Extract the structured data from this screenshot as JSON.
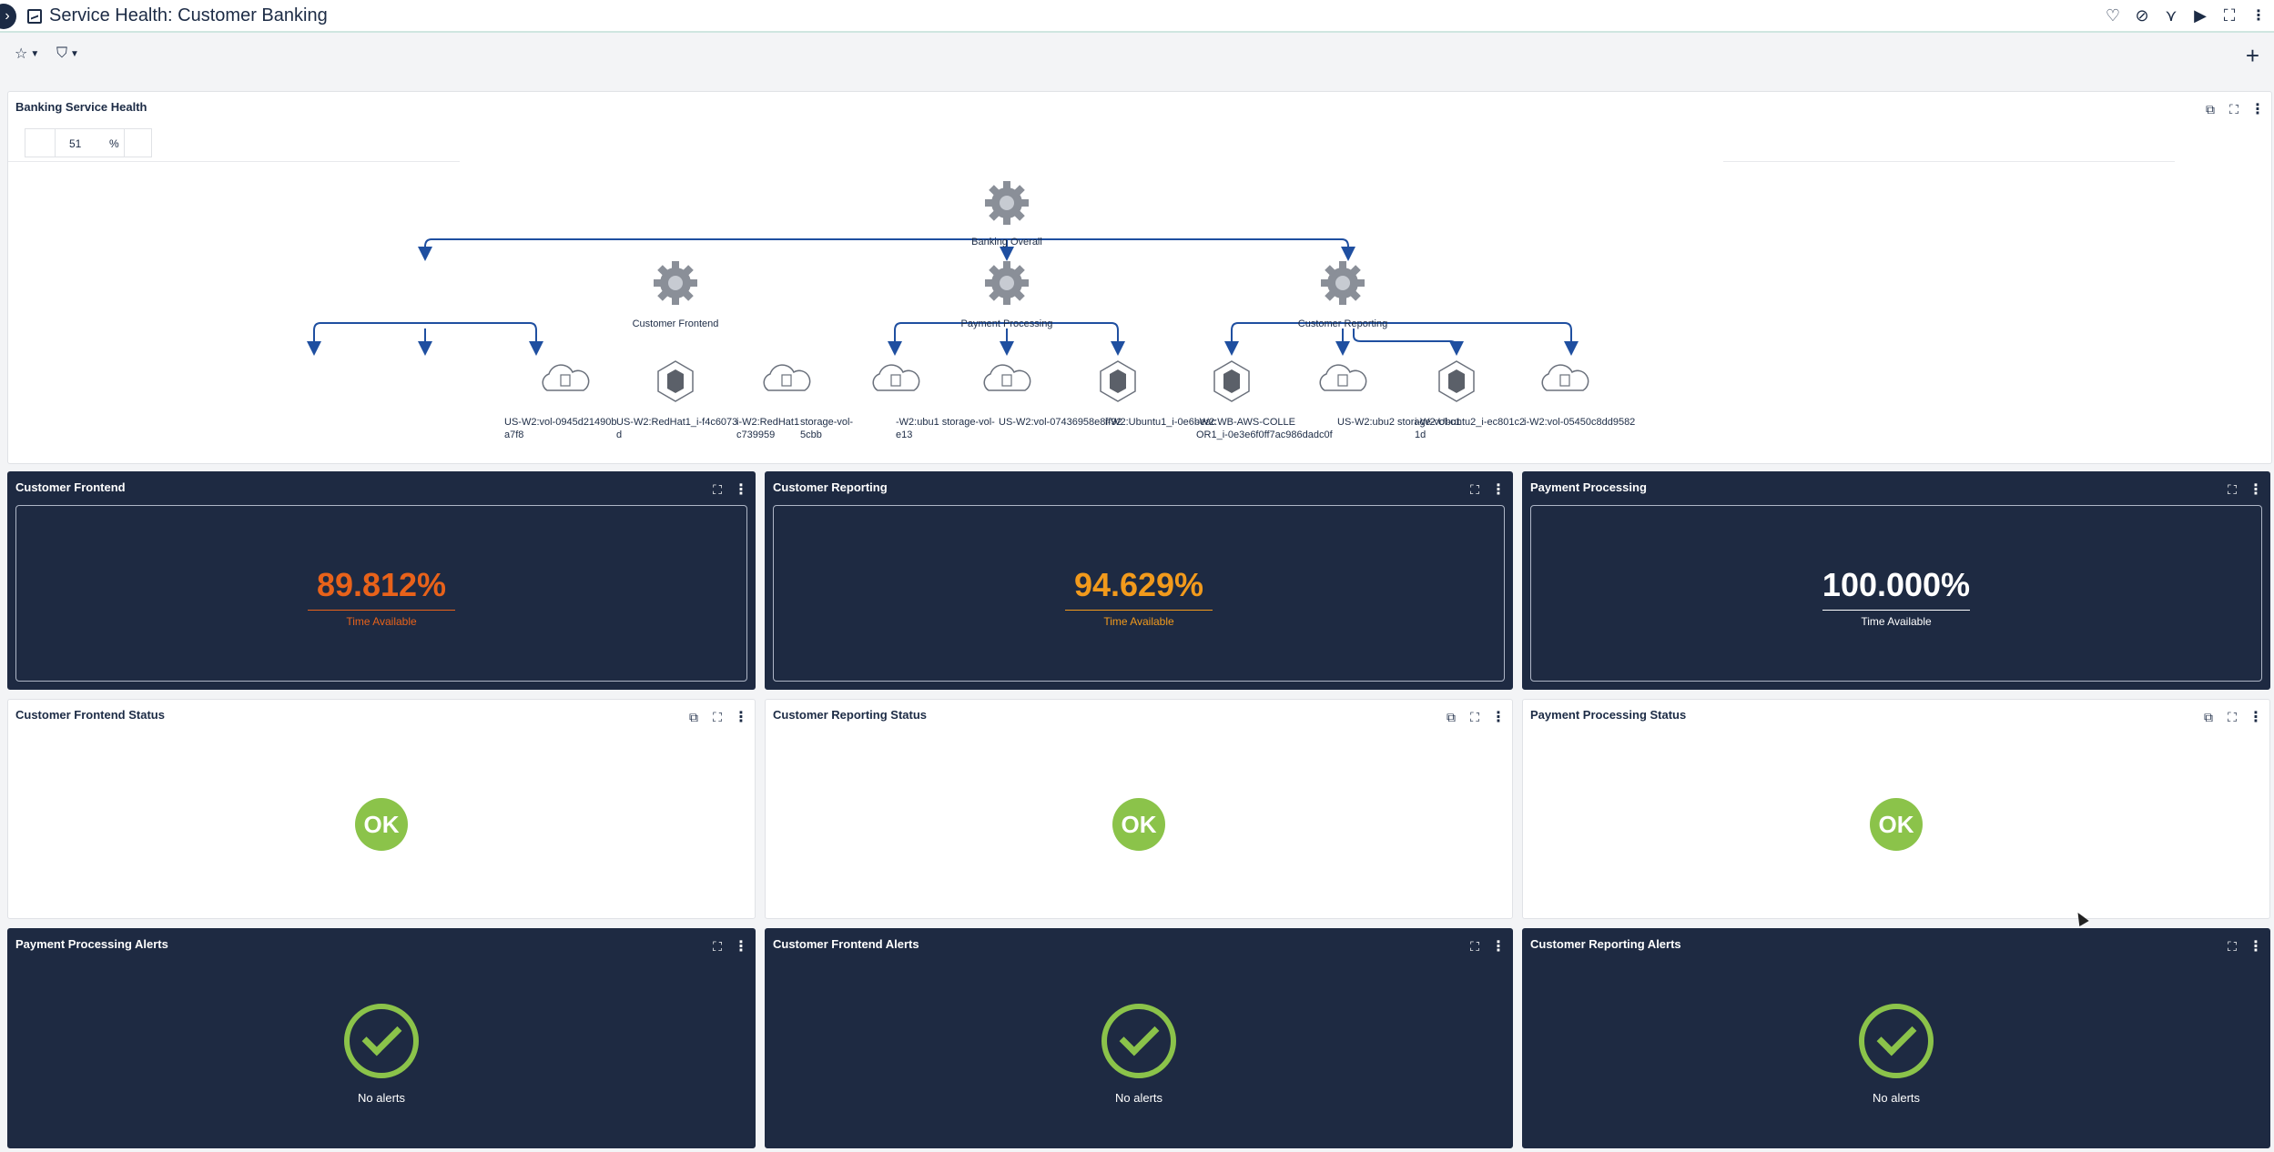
{
  "header": {
    "title": "Service Health: Customer Banking",
    "icons": [
      "heart-icon",
      "hide-icon",
      "share-icon",
      "slideshow-icon",
      "fullscreen-icon",
      "more-icon"
    ]
  },
  "map_widget": {
    "title": "Banking Service Health",
    "zoom_value": "51",
    "zoom_unit": "%",
    "root": "Banking Overall",
    "groups": [
      {
        "label": "Customer Frontend"
      },
      {
        "label": "Payment Processing"
      },
      {
        "label": "Customer Reporting"
      }
    ],
    "leaf_labels": [
      {
        "line1": "US-W2:vol-0945d21490b",
        "line2": "a7f8"
      },
      {
        "line1": "US-W2:RedHat1_i-f4c6073",
        "line2": "d"
      },
      {
        "line1": "i-W2:RedHat1",
        "line2": "c739959"
      },
      {
        "line1": "storage-vol-",
        "line2": "5cbb"
      },
      {
        "line1": "-W2:ubu1 storage-vol-",
        "line2": "e13"
      },
      {
        "line1": "US-W2:vol-07436958e8ff92",
        "line2": ""
      },
      {
        "line1": "i-W2:Ubuntu1_i-0e6beac",
        "line2": ""
      },
      {
        "line1": "-W2:WB-AWS-COLLE",
        "line2": "OR1_i-0e3e6f0ff7ac986dadc0f"
      },
      {
        "line1": "US-W2:ubu2 storage-vol-c1",
        "line2": ""
      },
      {
        "line1": "i-W2:Ubuntu2_i-ec801c2",
        "line2": "1d"
      },
      {
        "line1": "i-W2:vol-05450c8dd9582",
        "line2": ""
      }
    ]
  },
  "stats": [
    {
      "title": "Customer Frontend",
      "value": "89.812%",
      "caption": "Time Available",
      "color": "#e8621a"
    },
    {
      "title": "Customer Reporting",
      "value": "94.629%",
      "caption": "Time Available",
      "color": "#f29a1c"
    },
    {
      "title": "Payment Processing",
      "value": "100.000%",
      "caption": "Time Available",
      "color": "#ffffff"
    }
  ],
  "statuses": [
    {
      "title": "Customer Frontend Status",
      "status": "OK"
    },
    {
      "title": "Customer Reporting Status",
      "status": "OK"
    },
    {
      "title": "Payment Processing Status",
      "status": "OK"
    }
  ],
  "alerts": [
    {
      "title": "Payment Processing Alerts",
      "caption": "No alerts"
    },
    {
      "title": "Customer Frontend Alerts",
      "caption": "No alerts"
    },
    {
      "title": "Customer Reporting Alerts",
      "caption": "No alerts"
    }
  ],
  "colors": {
    "ok_green": "#8bc34a",
    "dark_panel": "#1e2a42",
    "link_blue": "#1f4fa0"
  }
}
